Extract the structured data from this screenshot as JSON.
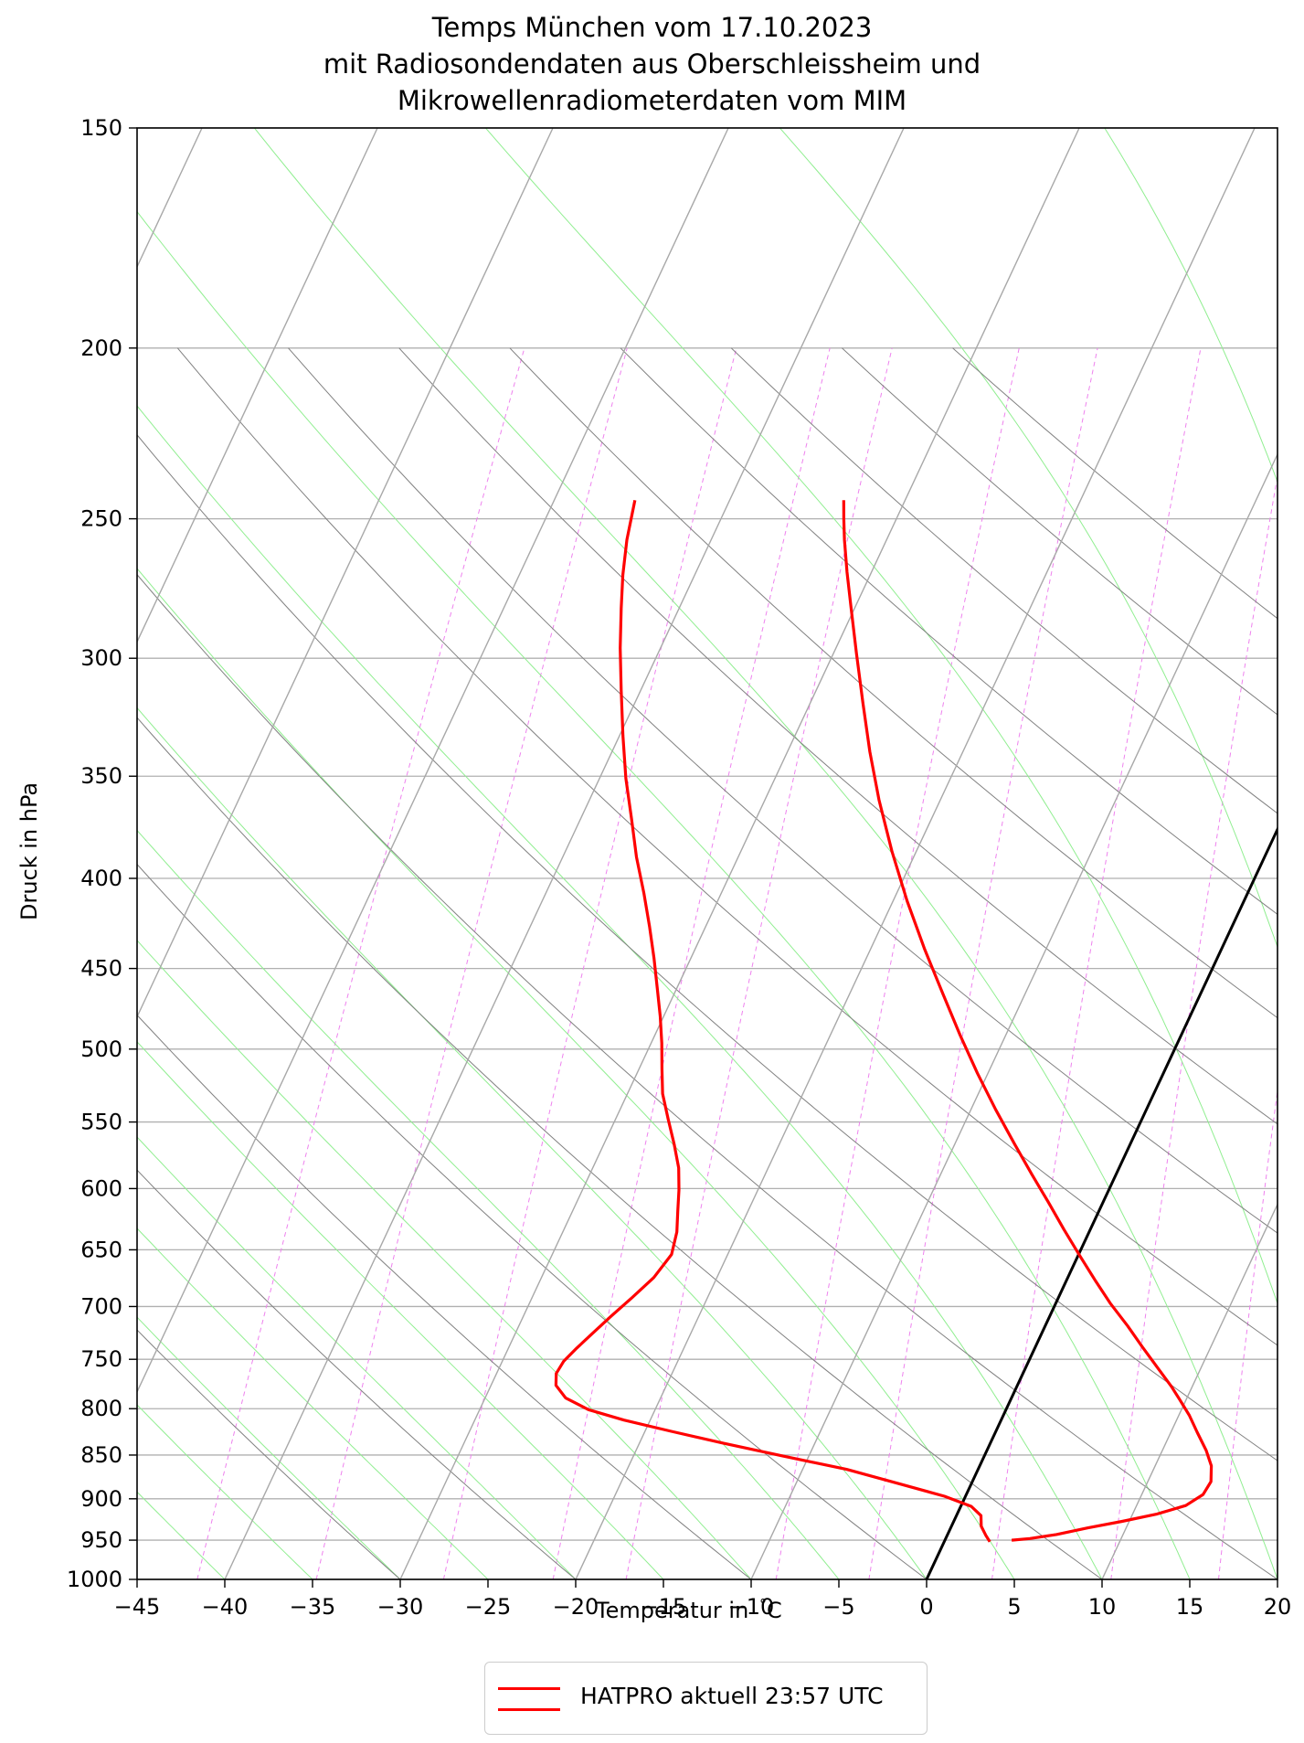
{
  "chart_data": {
    "type": "line",
    "title_lines": [
      "Temps München vom 17.10.2023",
      "mit Radiosondendaten aus Oberschleissheim und",
      "Mikrowellenradiometerdaten vom MIM"
    ],
    "xlabel": "Temperatur in $^\\circ$C",
    "xlabel_text": "Temperatur in",
    "xlabel_unit": "C",
    "ylabel": "Druck in hPa",
    "xlim": [
      -45,
      20
    ],
    "ylim": [
      1000,
      150
    ],
    "y_scale": "log",
    "x_ticks": [
      "−45",
      "−40",
      "−35",
      "−30",
      "−25",
      "−20",
      "−15",
      "−10",
      "−5",
      "0",
      "5",
      "10",
      "15",
      "20"
    ],
    "y_ticks": [
      150,
      200,
      250,
      300,
      350,
      400,
      450,
      500,
      550,
      600,
      650,
      700,
      750,
      800,
      850,
      900,
      950,
      1000
    ],
    "grid": true,
    "legend_position": "below",
    "colors": {
      "profile": "#ff0000",
      "isotherm": "#a8a8a8",
      "dry_adiabat": "#808080",
      "moist_adiabat": "#90ee90",
      "mixing_ratio": "#ee82ee",
      "zero_isotherm": "#000000",
      "grid": "#b0b0b0"
    },
    "series": [
      {
        "name": "HATPRO aktuell 23:57 UTC",
        "kind": "temperature",
        "points": [
          [
            3.8,
            950
          ],
          [
            4.8,
            948
          ],
          [
            6.2,
            943
          ],
          [
            7.8,
            935
          ],
          [
            9.6,
            927
          ],
          [
            11.4,
            918
          ],
          [
            12.8,
            908
          ],
          [
            13.5,
            895
          ],
          [
            13.6,
            880
          ],
          [
            13.2,
            862
          ],
          [
            12.5,
            845
          ],
          [
            11.5,
            825
          ],
          [
            10.6,
            807
          ],
          [
            9.6,
            790
          ],
          [
            8.8,
            777
          ],
          [
            7.5,
            758
          ],
          [
            6.1,
            738
          ],
          [
            4.7,
            718
          ],
          [
            3.1,
            697
          ],
          [
            1.6,
            676
          ],
          [
            0.1,
            655
          ],
          [
            -1.5,
            633
          ],
          [
            -3.1,
            611
          ],
          [
            -4.8,
            589
          ],
          [
            -6.6,
            566
          ],
          [
            -8.6,
            541
          ],
          [
            -10.6,
            516
          ],
          [
            -12.6,
            491
          ],
          [
            -14.7,
            465
          ],
          [
            -16.9,
            439
          ],
          [
            -19.2,
            412
          ],
          [
            -21.4,
            386
          ],
          [
            -23.5,
            361
          ],
          [
            -25.3,
            339
          ],
          [
            -27.0,
            318
          ],
          [
            -28.7,
            298
          ],
          [
            -30.2,
            281
          ],
          [
            -31.4,
            268
          ],
          [
            -32.4,
            257
          ],
          [
            -33.0,
            250
          ],
          [
            -33.5,
            244
          ]
        ]
      },
      {
        "name": "HATPRO aktuell 23:57 UTC",
        "kind": "dewpoint",
        "points": [
          [
            2.6,
            952
          ],
          [
            2.2,
            944
          ],
          [
            1.7,
            933
          ],
          [
            1.4,
            920
          ],
          [
            0.6,
            909
          ],
          [
            -1.2,
            897
          ],
          [
            -4.2,
            882
          ],
          [
            -7.5,
            866
          ],
          [
            -11.5,
            851
          ],
          [
            -15.2,
            837
          ],
          [
            -18.5,
            824
          ],
          [
            -21.5,
            812
          ],
          [
            -23.8,
            801
          ],
          [
            -25.4,
            789
          ],
          [
            -26.3,
            776
          ],
          [
            -26.6,
            764
          ],
          [
            -26.5,
            752
          ],
          [
            -26.1,
            739
          ],
          [
            -25.6,
            725
          ],
          [
            -25.0,
            709
          ],
          [
            -24.3,
            692
          ],
          [
            -23.6,
            674
          ],
          [
            -23.2,
            654
          ],
          [
            -23.5,
            635
          ],
          [
            -24.0,
            618
          ],
          [
            -24.5,
            601
          ],
          [
            -25.1,
            584
          ],
          [
            -26.0,
            566
          ],
          [
            -27.0,
            548
          ],
          [
            -28.0,
            530
          ],
          [
            -28.7,
            513
          ],
          [
            -29.4,
            496
          ],
          [
            -30.2,
            479
          ],
          [
            -31.1,
            462
          ],
          [
            -32.1,
            444
          ],
          [
            -33.2,
            426
          ],
          [
            -34.4,
            408
          ],
          [
            -35.8,
            389
          ],
          [
            -37.1,
            370
          ],
          [
            -38.5,
            351
          ],
          [
            -39.8,
            332
          ],
          [
            -41.1,
            313
          ],
          [
            -42.3,
            296
          ],
          [
            -43.3,
            281
          ],
          [
            -44.1,
            269
          ],
          [
            -44.8,
            257
          ],
          [
            -45.4,
            244
          ]
        ]
      }
    ],
    "legend": [
      {
        "label": "HATPRO aktuell 23:57 UTC",
        "color": "#ff0000"
      }
    ]
  }
}
